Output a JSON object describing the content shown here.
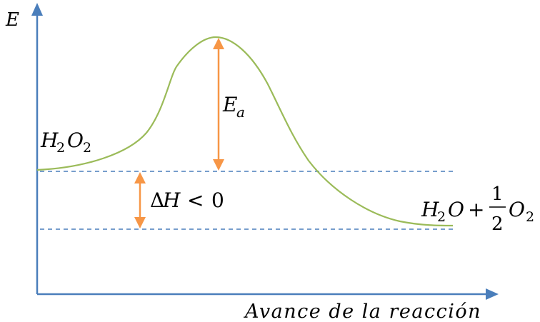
{
  "axes": {
    "y_label": "E",
    "x_label": "Avance de la reacción"
  },
  "reactant": {
    "label": "H",
    "sub1": "2",
    "label2": "O",
    "sub2": "2"
  },
  "product": {
    "h": "H",
    "h_sub": "2",
    "o": "O",
    "plus": "+",
    "frac_num": "1",
    "frac_den": "2",
    "o2": "O",
    "o2_sub": "2"
  },
  "activation_energy": {
    "symbol": "E",
    "sub": "a"
  },
  "enthalpy": {
    "delta": "Δ",
    "symbol": "H",
    "relation": "<",
    "value": "0"
  },
  "colors": {
    "axis": "#4a7ebb",
    "curve": "#9bbb59",
    "arrow": "#f79646",
    "dashed": "#4a7ebb"
  }
}
